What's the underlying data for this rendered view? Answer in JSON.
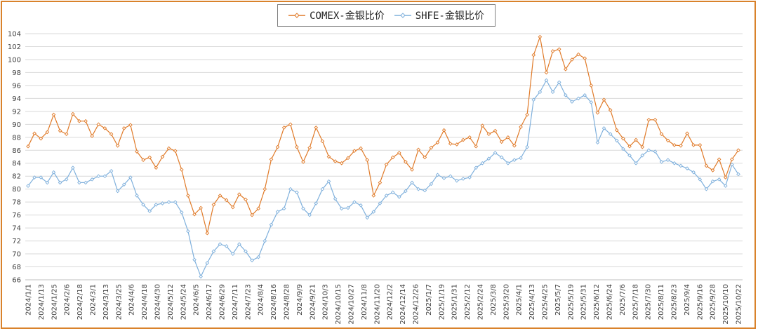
{
  "chart_data": {
    "type": "line",
    "title": "",
    "xlabel": "",
    "ylabel": "",
    "ylim": [
      66,
      104
    ],
    "y_ticks": [
      66,
      68,
      70,
      72,
      74,
      76,
      78,
      80,
      82,
      84,
      86,
      88,
      90,
      92,
      94,
      96,
      98,
      100,
      102,
      104
    ],
    "grid": "horizontal",
    "legend_position": "top-center",
    "x_tick_labels": [
      "2024/1/1",
      "2024/1/13",
      "2024/1/25",
      "2024/2/6",
      "2024/2/18",
      "2024/3/1",
      "2024/3/13",
      "2024/3/25",
      "2024/4/6",
      "2024/4/18",
      "2024/4/30",
      "2024/5/12",
      "2024/5/24",
      "2024/6/5",
      "2024/6/17",
      "2024/6/29",
      "2024/7/11",
      "2024/7/23",
      "2024/8/4",
      "2024/8/16",
      "2024/8/28",
      "2024/9/9",
      "2024/9/21",
      "2024/10/3",
      "2024/10/15",
      "2024/10/27",
      "2024/11/8",
      "2024/11/20",
      "2024/12/2",
      "2024/12/14",
      "2024/12/26",
      "2025/1/7",
      "2025/1/19",
      "2025/1/31",
      "2025/2/12",
      "2025/2/24",
      "2025/3/8",
      "2025/3/20",
      "2025/4/1",
      "2025/4/13",
      "2025/4/25",
      "2025/5/7",
      "2025/5/19",
      "2025/5/31",
      "2025/6/12",
      "2025/6/24",
      "2025/7/6",
      "2025/7/18",
      "2025/7/30",
      "2025/8/11",
      "2025/8/23",
      "2025/9/4",
      "2025/9/16",
      "2025/9/28",
      "2025/10/10",
      "2025/10/22"
    ],
    "series": [
      {
        "name": "COMEX-金银比价",
        "color": "#e07a28",
        "values": [
          86.6,
          88.6,
          87.8,
          88.8,
          91.5,
          89.0,
          88.5,
          91.6,
          90.5,
          90.5,
          88.2,
          90.0,
          89.4,
          88.5,
          86.7,
          89.4,
          89.9,
          85.8,
          84.5,
          84.9,
          83.3,
          85.0,
          86.3,
          85.9,
          83.0,
          79.0,
          76.1,
          77.1,
          73.2,
          77.6,
          79.0,
          78.3,
          77.2,
          79.2,
          78.4,
          76.0,
          77.0,
          80.0,
          84.6,
          86.5,
          89.5,
          90.0,
          86.5,
          84.2,
          86.4,
          89.5,
          87.4,
          85.0,
          84.3,
          84.0,
          84.8,
          85.9,
          86.3,
          84.5,
          79.0,
          81.0,
          83.8,
          84.9,
          85.6,
          84.2,
          83.0,
          86.1,
          84.9,
          86.4,
          87.2,
          89.1,
          87.0,
          86.9,
          87.6,
          88.0,
          86.6,
          89.8,
          88.5,
          89.0,
          87.3,
          88.0,
          86.7,
          89.6,
          91.5,
          100.7,
          103.5,
          98.0,
          101.3,
          101.6,
          98.5,
          100.0,
          100.8,
          100.2,
          96.0,
          91.8,
          93.8,
          92.2,
          89.1,
          87.8,
          86.6,
          87.6,
          86.5,
          90.7,
          90.7,
          88.5,
          87.5,
          86.8,
          86.7,
          88.6,
          86.8,
          86.8,
          83.6,
          82.9,
          84.6,
          81.8,
          84.6,
          86.0
        ]
      },
      {
        "name": "SHFE-金银比价",
        "color": "#7fb0dc",
        "values": [
          80.5,
          81.8,
          81.8,
          81.0,
          82.6,
          81.0,
          81.5,
          83.3,
          81.0,
          81.0,
          81.5,
          82.0,
          82.0,
          82.8,
          79.7,
          80.7,
          81.8,
          79.0,
          77.6,
          76.6,
          77.6,
          77.8,
          78.0,
          78.0,
          76.4,
          73.5,
          69.1,
          66.5,
          68.6,
          70.4,
          71.5,
          71.2,
          70.0,
          71.5,
          70.4,
          69.0,
          69.5,
          72.0,
          74.5,
          76.5,
          77.0,
          80.0,
          79.5,
          77.0,
          76.0,
          77.8,
          80.0,
          81.2,
          78.5,
          77.0,
          77.1,
          78.0,
          77.5,
          75.6,
          76.5,
          77.8,
          79.0,
          79.5,
          78.8,
          79.7,
          81.0,
          80.0,
          79.8,
          80.8,
          82.2,
          81.7,
          82.0,
          81.3,
          81.6,
          81.8,
          83.3,
          84.0,
          84.7,
          85.6,
          84.9,
          84.0,
          84.5,
          84.8,
          86.5,
          93.8,
          95.0,
          96.8,
          95.0,
          96.5,
          94.5,
          93.5,
          94.0,
          94.5,
          93.4,
          87.2,
          89.4,
          88.5,
          87.5,
          86.2,
          85.2,
          84.0,
          85.2,
          86.0,
          85.8,
          84.2,
          84.5,
          84.0,
          83.6,
          83.2,
          82.6,
          81.5,
          80.0,
          81.2,
          81.5,
          80.5,
          83.8,
          82.3
        ]
      }
    ]
  }
}
